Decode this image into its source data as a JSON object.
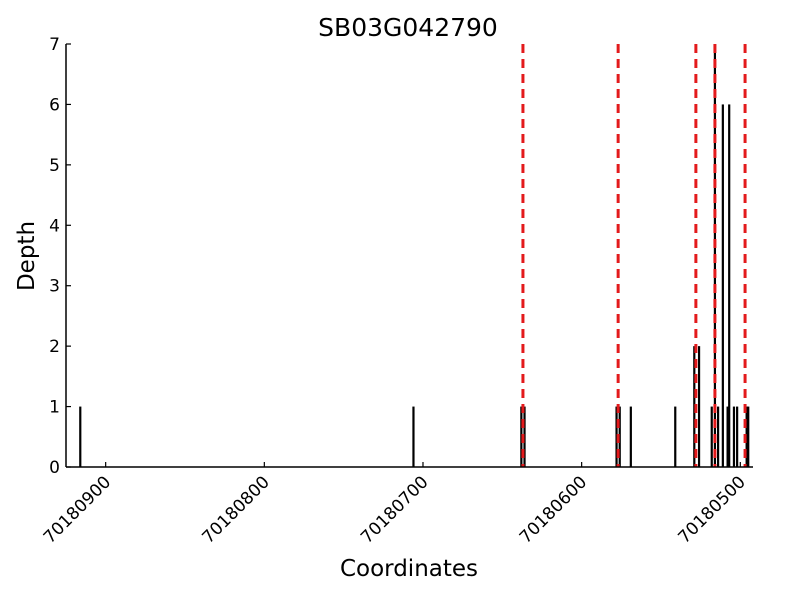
{
  "chart_data": {
    "type": "bar",
    "title": "SB03G042790",
    "xlabel": "Coordinates",
    "ylabel": "Depth",
    "x_reversed": true,
    "xlim": [
      70180925,
      70180492
    ],
    "ylim": [
      0,
      7
    ],
    "x_ticks": [
      70180900,
      70180800,
      70180700,
      70180600,
      70180500
    ],
    "x_tick_labels": [
      "70180900",
      "70180800",
      "70180700",
      "70180600",
      "70180500"
    ],
    "y_ticks": [
      0,
      1,
      2,
      3,
      4,
      5,
      6,
      7
    ],
    "y_tick_labels": [
      "0",
      "1",
      "2",
      "3",
      "4",
      "5",
      "6",
      "7"
    ],
    "grid": false,
    "bar_color": "#000000",
    "bars": [
      {
        "x": 70180916,
        "depth": 1
      },
      {
        "x": 70180706,
        "depth": 1
      },
      {
        "x": 70180638,
        "depth": 1
      },
      {
        "x": 70180636,
        "depth": 1
      },
      {
        "x": 70180578,
        "depth": 1
      },
      {
        "x": 70180576,
        "depth": 1
      },
      {
        "x": 70180569,
        "depth": 1
      },
      {
        "x": 70180541,
        "depth": 1
      },
      {
        "x": 70180529,
        "depth": 2
      },
      {
        "x": 70180526,
        "depth": 2
      },
      {
        "x": 70180522,
        "depth": 0
      },
      {
        "x": 70180521,
        "depth": 0
      },
      {
        "x": 70180518,
        "depth": 1
      },
      {
        "x": 70180516,
        "depth": 7
      },
      {
        "x": 70180514,
        "depth": 1
      },
      {
        "x": 70180511,
        "depth": 6
      },
      {
        "x": 70180508,
        "depth": 1
      },
      {
        "x": 70180507,
        "depth": 6
      },
      {
        "x": 70180504,
        "depth": 1
      },
      {
        "x": 70180502,
        "depth": 1
      },
      {
        "x": 70180496,
        "depth": 1
      },
      {
        "x": 70180495,
        "depth": 1
      }
    ],
    "markers": {
      "style": "dashed",
      "color": "#e31a1c",
      "x": [
        70180637,
        70180577,
        70180528,
        70180516,
        70180497
      ]
    }
  }
}
